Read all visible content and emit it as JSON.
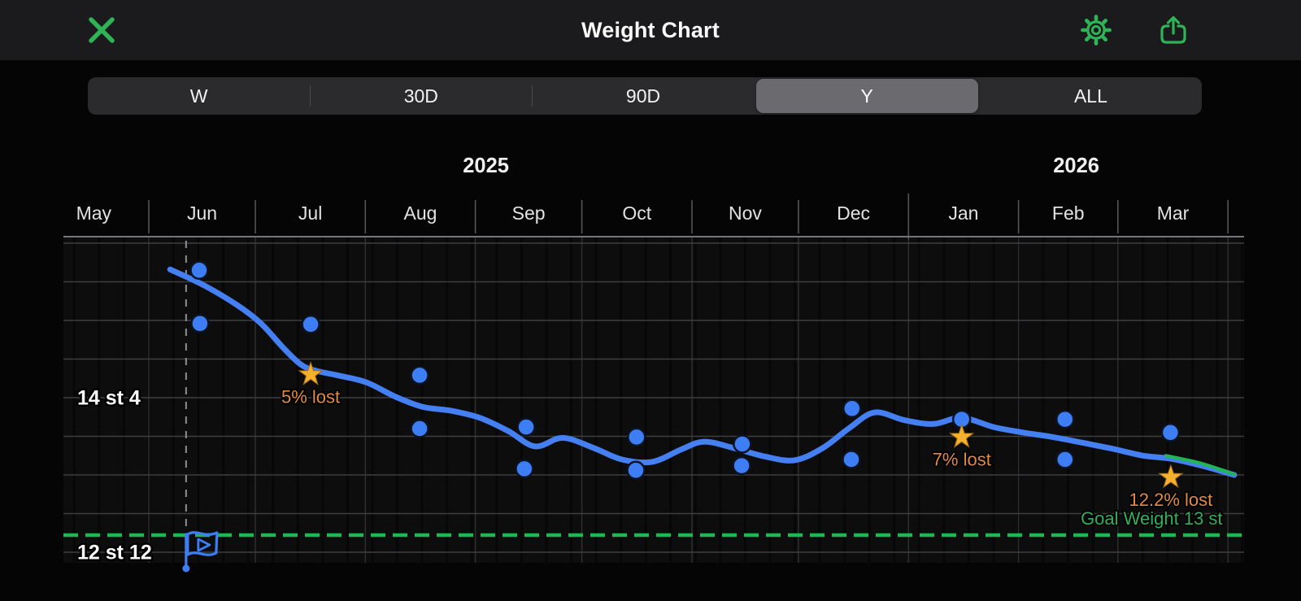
{
  "topbar": {
    "title": "Weight Chart",
    "close_icon": "x-close",
    "settings_icon": "gear",
    "share_icon": "share-up-arrow"
  },
  "range_selector": {
    "options": [
      "W",
      "30D",
      "90D",
      "Y",
      "ALL"
    ],
    "selected": "Y",
    "selected_index": 3
  },
  "chart_data": {
    "type": "scatter",
    "description": "Weight readings (dots) with smoothed trend line, milestone stars and goal line; x axis in days from 2025-06-01",
    "unit": "stones/pounds",
    "x_axis": {
      "years": [
        {
          "label": "2025",
          "start": -31,
          "end": 214
        },
        {
          "label": "2026",
          "start": 214,
          "end": 309
        }
      ],
      "months": [
        {
          "label": "May",
          "start": -31
        },
        {
          "label": "Jun",
          "start": 0
        },
        {
          "label": "Jul",
          "start": 30
        },
        {
          "label": "Aug",
          "start": 61
        },
        {
          "label": "Sep",
          "start": 92
        },
        {
          "label": "Oct",
          "start": 122
        },
        {
          "label": "Nov",
          "start": 153
        },
        {
          "label": "Dec",
          "start": 183
        },
        {
          "label": "Jan",
          "start": 214
        },
        {
          "label": "Feb",
          "start": 245
        },
        {
          "label": "Mar",
          "start": 273
        }
      ],
      "axis_end_day": 304,
      "year_boundary_day": 214
    },
    "y_axis": {
      "gridline_values_lb": [
        220,
        215,
        210,
        205,
        200,
        195,
        190,
        185,
        180
      ],
      "labeled_ticks": [
        {
          "label": "14 st 4",
          "lb": 200
        },
        {
          "label": "12 st 12",
          "lb": 180
        }
      ]
    },
    "goal": {
      "label": "Goal Weight 13 st",
      "lb": 182,
      "label_day": 282.5
    },
    "start_marker": {
      "day": 10.5,
      "icon": "flag-play"
    },
    "scatter_lb": [
      [
        14.2,
        216.5
      ],
      [
        14.4,
        209.6
      ],
      [
        45.6,
        209.5
      ],
      [
        76.3,
        202.9
      ],
      [
        76.3,
        196.0
      ],
      [
        106.3,
        196.2
      ],
      [
        105.8,
        190.8
      ],
      [
        137.4,
        194.9
      ],
      [
        137.2,
        190.6
      ],
      [
        167.2,
        194.0
      ],
      [
        167.0,
        191.2
      ],
      [
        198.1,
        198.6
      ],
      [
        197.9,
        192.0
      ],
      [
        229.0,
        197.2
      ],
      [
        258.1,
        197.2
      ],
      [
        258.1,
        192.0
      ],
      [
        287.8,
        195.5
      ]
    ],
    "trend_lb": [
      [
        6.0,
        216.6
      ],
      [
        15.3,
        214.6
      ],
      [
        24.5,
        212.1
      ],
      [
        31.4,
        209.7
      ],
      [
        37.8,
        206.5
      ],
      [
        42.8,
        204.3
      ],
      [
        47.0,
        203.5
      ],
      [
        53.1,
        202.9
      ],
      [
        61.2,
        202.0
      ],
      [
        69.6,
        200.1
      ],
      [
        77.2,
        198.8
      ],
      [
        85.2,
        198.3
      ],
      [
        93.2,
        197.4
      ],
      [
        101.2,
        195.7
      ],
      [
        108.8,
        193.7
      ],
      [
        116.6,
        194.8
      ],
      [
        125.3,
        193.5
      ],
      [
        133.3,
        192.0
      ],
      [
        141.8,
        191.7
      ],
      [
        150.0,
        193.3
      ],
      [
        156.4,
        194.3
      ],
      [
        164.7,
        193.5
      ],
      [
        173.4,
        192.4
      ],
      [
        181.9,
        191.9
      ],
      [
        189.9,
        193.5
      ],
      [
        197.4,
        196.1
      ],
      [
        204.5,
        198.1
      ],
      [
        212.8,
        197.1
      ],
      [
        221.0,
        196.6
      ],
      [
        229.0,
        197.4
      ],
      [
        238.0,
        196.2
      ],
      [
        246.2,
        195.5
      ],
      [
        254.7,
        194.9
      ],
      [
        262.7,
        194.2
      ],
      [
        271.4,
        193.4
      ],
      [
        280.1,
        192.5
      ],
      [
        287.9,
        192.1
      ],
      [
        296.6,
        191.2
      ],
      [
        303.5,
        190.3
      ],
      [
        305.8,
        190.0
      ]
    ],
    "projection_lb": [
      [
        286.5,
        192.5
      ],
      [
        296.0,
        191.55
      ],
      [
        305.8,
        190.1
      ]
    ],
    "milestones": [
      {
        "day": 45.6,
        "lb": 203.0,
        "label": "5% lost"
      },
      {
        "day": 229.0,
        "lb": 194.9,
        "label": "7% lost"
      },
      {
        "day": 287.9,
        "lb": 189.7,
        "label": "12.2% lost"
      }
    ]
  },
  "colors": {
    "accent_green": "#2fb356",
    "trend_blue": "#4580f2",
    "dot_blue": "#3e7ef5",
    "milestone_orange": "#e08a42",
    "star_gold": "#f5b02d",
    "goal_line_green": "#22b455",
    "goal_text_green": "#2eb158"
  }
}
